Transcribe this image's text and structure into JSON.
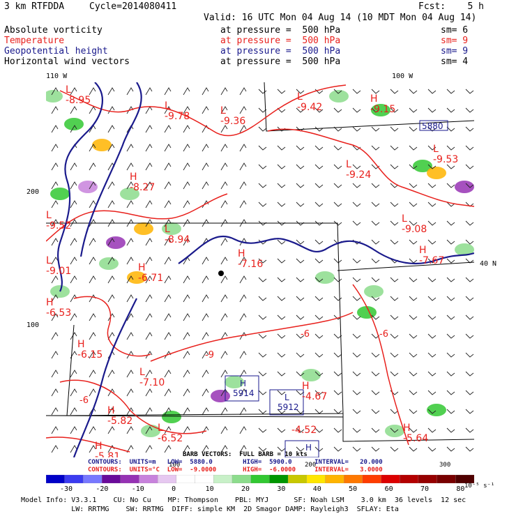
{
  "header": {
    "model_name": "3 km RTFDDA",
    "cycle": "Cycle=2014080411",
    "forecast": "Fcst:    5 h",
    "valid": "Valid: 16 UTC Mon 04 Aug 14 (10 MDT Mon 04 Aug 14)"
  },
  "fields": [
    {
      "name": "Absolute vorticity",
      "level": "at pressure =  500 hPa",
      "smoothing": "sm= 6",
      "color": "#000000"
    },
    {
      "name": "Temperature",
      "level": "at pressure =  500 hPa",
      "smoothing": "sm= 9",
      "color": "#e8201c"
    },
    {
      "name": "Geopotential height",
      "level": "at pressure =  500 hPa",
      "smoothing": "sm= 9",
      "color": "#1a1a8c"
    },
    {
      "name": "Horizontal wind vectors",
      "level": "at pressure =  500 hPa",
      "smoothing": "sm= 4",
      "color": "#000000"
    }
  ],
  "map": {
    "longitude_labels": [
      "110 W",
      "100 W"
    ],
    "latitude_label": "40 N",
    "left_grid_labels": [
      "200",
      "100"
    ],
    "bottom_grid_labels": [
      "100",
      "200",
      "300"
    ],
    "temperature_labels": [
      {
        "sym": "L",
        "val": "-8.95"
      },
      {
        "sym": "L",
        "val": "-9.78"
      },
      {
        "sym": "L",
        "val": "-9.36"
      },
      {
        "sym": "L",
        "val": "-9.42"
      },
      {
        "sym": "H",
        "val": "-9.15"
      },
      {
        "sym": "H",
        "val": "-8.27"
      },
      {
        "sym": "L",
        "val": "-9.24"
      },
      {
        "sym": "L",
        "val": "-9.53"
      },
      {
        "sym": "L",
        "val": "-8.94"
      },
      {
        "sym": "L",
        "val": "-9.08"
      },
      {
        "sym": "L",
        "val": "-9.52"
      },
      {
        "sym": "H",
        "val": "-7.16"
      },
      {
        "sym": "H",
        "val": "-7.67"
      },
      {
        "sym": "L",
        "val": "-9.01"
      },
      {
        "sym": "H",
        "val": "-6.71"
      },
      {
        "sym": "H",
        "val": "-6.53"
      },
      {
        "sym": "H",
        "val": "-6.15"
      },
      {
        "sym": "L",
        "val": "-7.10"
      },
      {
        "sym": "H",
        "val": "-4.67"
      },
      {
        "sym": "H",
        "val": "-5.82"
      },
      {
        "sym": "L",
        "val": "-6.52"
      },
      {
        "sym": "",
        "val": "-4.52"
      },
      {
        "sym": "H",
        "val": "-5.64"
      },
      {
        "sym": "H",
        "val": "-5.81"
      }
    ],
    "contour_value_labels": [
      "-9",
      "-6",
      "-6",
      "-6"
    ],
    "height_labels": [
      {
        "sym": "",
        "val": "5880"
      },
      {
        "sym": "H",
        "val": "5914"
      },
      {
        "sym": "L",
        "val": "5912"
      },
      {
        "sym": "H",
        "val": ""
      }
    ]
  },
  "footer": {
    "barb_note": "BARB VECTORS:  FULL BARB = 10 kts",
    "contours_height": "CONTOURS:  UNITS=m   LOW=  5880.0        HIGH=  5900.0      INTERVAL=   20.000",
    "contours_temp": "CONTOURS:  UNITS=°C  LOW=  -9.0000       HIGH=  -6.0000     INTERVAL=   3.0000",
    "colorbar_labels": [
      "-30",
      "-20",
      "-10",
      "0",
      "10",
      "20",
      "30",
      "40",
      "50",
      "60",
      "70",
      "80"
    ],
    "colorbar_units": "10⁻⁵ s⁻¹",
    "colorbar_colors": [
      "#0000c8",
      "#3c3cf0",
      "#7878ff",
      "#6a0a9a",
      "#9632b4",
      "#c882dc",
      "#e6c8f0",
      "#ffffff",
      "#ffffff",
      "#c8f0c8",
      "#8cdc8c",
      "#32c832",
      "#009600",
      "#c8c800",
      "#ffe600",
      "#ffb400",
      "#ff7800",
      "#ff3c00",
      "#dc0000",
      "#b40000",
      "#960000",
      "#780000",
      "#500000"
    ],
    "model_info_1": "Model Info: V3.3.1    CU: No Cu    MP: Thompson    PBL: MYJ      SF: Noah LSM    3.0 km  36 levels  12 sec",
    "model_info_2": "            LW: RRTMG    SW: RRTMG  DIFF: simple KM  2D Smagor DAMP: Rayleigh3  SFLAY: Eta"
  }
}
